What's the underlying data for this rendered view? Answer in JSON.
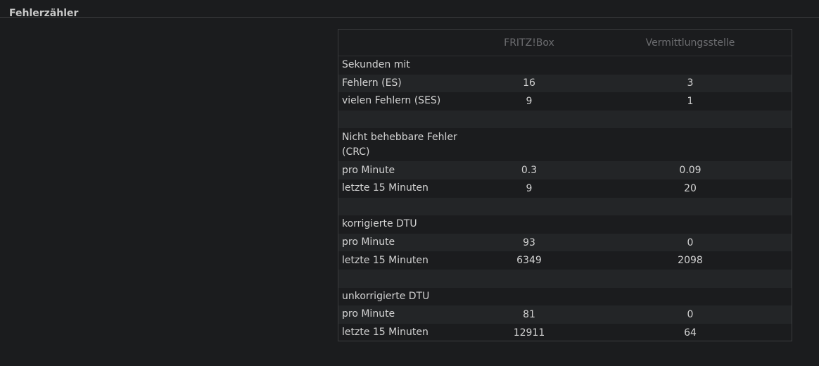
{
  "section": {
    "title": "Fehlerzähler"
  },
  "table": {
    "headers": [
      "",
      "FRITZ!Box",
      "Vermittlungsstelle"
    ],
    "rows": [
      {
        "label": "Sekunden mit",
        "fritzbox": "",
        "vst": ""
      },
      {
        "label": "Fehlern (ES)",
        "fritzbox": "16",
        "vst": "3"
      },
      {
        "label": "vielen Fehlern (SES)",
        "fritzbox": "9",
        "vst": "1"
      },
      {
        "label": "",
        "fritzbox": "",
        "vst": ""
      },
      {
        "label": "Nicht behebbare Fehler (CRC)",
        "fritzbox": "",
        "vst": ""
      },
      {
        "label": "pro Minute",
        "fritzbox": "0.3",
        "vst": "0.09"
      },
      {
        "label": "letzte 15 Minuten",
        "fritzbox": "9",
        "vst": "20"
      },
      {
        "label": "",
        "fritzbox": "",
        "vst": ""
      },
      {
        "label": "korrigierte DTU",
        "fritzbox": "",
        "vst": ""
      },
      {
        "label": "pro Minute",
        "fritzbox": "93",
        "vst": "0"
      },
      {
        "label": "letzte 15 Minuten",
        "fritzbox": "6349",
        "vst": "2098"
      },
      {
        "label": "",
        "fritzbox": "",
        "vst": ""
      },
      {
        "label": "unkorrigierte DTU",
        "fritzbox": "",
        "vst": ""
      },
      {
        "label": "pro Minute",
        "fritzbox": "81",
        "vst": "0"
      },
      {
        "label": "letzte 15 Minuten",
        "fritzbox": "12911",
        "vst": "64"
      }
    ]
  }
}
